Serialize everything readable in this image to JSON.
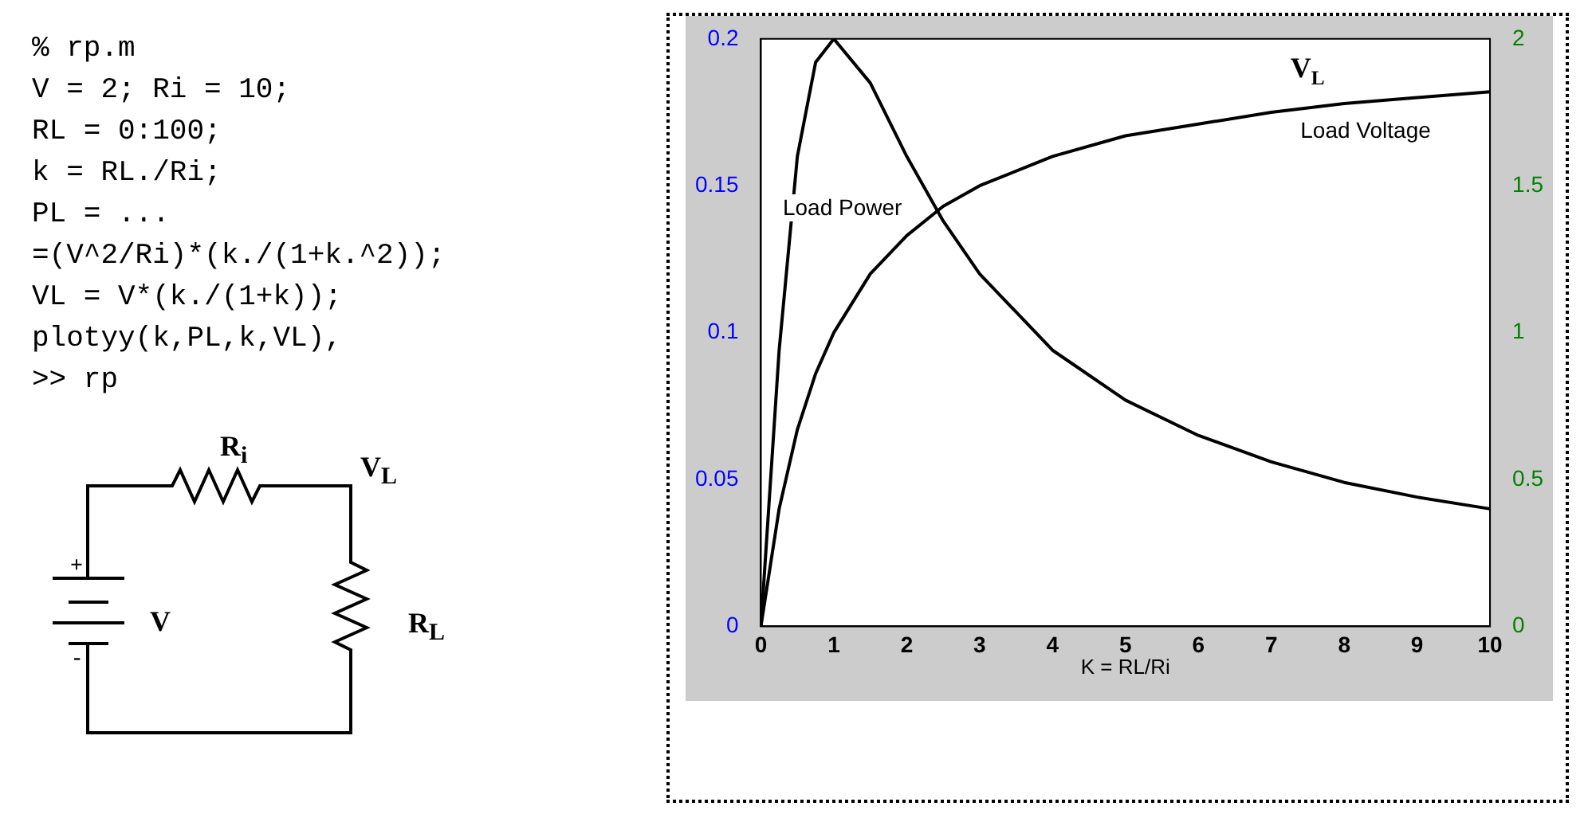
{
  "chart_data": {
    "type": "line",
    "xlabel": "K = RL/Ri",
    "x": [
      0,
      0.25,
      0.5,
      0.75,
      1,
      1.5,
      2,
      2.5,
      3,
      4,
      5,
      6,
      7,
      8,
      9,
      10
    ],
    "series": [
      {
        "name": "Load Power",
        "color": "#000000",
        "values": [
          0,
          0.094,
          0.16,
          0.192,
          0.2,
          0.185,
          0.16,
          0.138,
          0.12,
          0.094,
          0.077,
          0.065,
          0.056,
          0.049,
          0.044,
          0.04
        ]
      },
      {
        "name": "V$_{L}$",
        "color": "#000000",
        "axis": "y2",
        "values": [
          0,
          0.4,
          0.67,
          0.86,
          1,
          1.2,
          1.33,
          1.43,
          1.5,
          1.6,
          1.67,
          1.71,
          1.75,
          1.78,
          1.8,
          1.82
        ]
      }
    ],
    "xlim": [
      0,
      10
    ],
    "xticks": [
      0,
      1,
      2,
      3,
      4,
      5,
      6,
      7,
      8,
      9,
      10
    ],
    "ylim": [
      0,
      0.2
    ],
    "yticks": [
      0,
      0.05,
      0.1,
      0.15,
      0.2
    ],
    "y2lim": [
      0,
      2
    ],
    "y2ticks": [
      0,
      0.5,
      1,
      1.5,
      2
    ],
    "grid": false,
    "legend": false,
    "marker": "none",
    "line_style": "solid",
    "annotations": [
      "% rp.m",
      "V = 2; Ri = 10;",
      "RL = 0:100;",
      "k = RL./Ri;",
      "PL = ...",
      "=(V^2/Ri)*(k./(1+k.^2));",
      "VL = V*(k./(1+k));",
      "plotyy(k,PL,k,VL),",
      ">> rp",
      "+",
      "V",
      "-",
      "R$_{i}$",
      "V$_{L}$",
      "R$_{L}$",
      "Load Voltage"
    ]
  }
}
